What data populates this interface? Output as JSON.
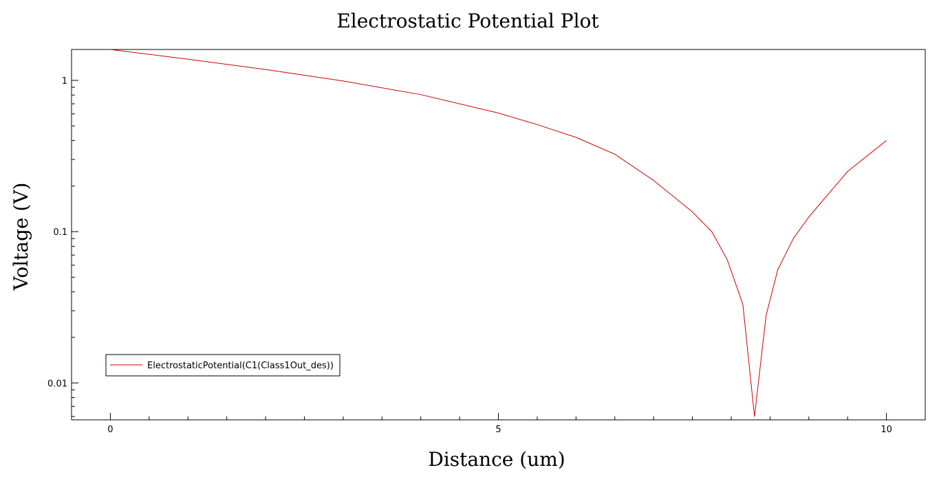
{
  "chart_data": {
    "type": "line",
    "title": "Electrostatic Potential Plot",
    "xlabel": "Distance (um)",
    "ylabel": "Voltage (V)",
    "xscale": "linear",
    "yscale": "log",
    "xlim": [
      -0.5,
      10.5
    ],
    "ylim": [
      0.0057,
      1.6
    ],
    "x_ticks": [
      {
        "value": 0,
        "label": "0"
      },
      {
        "value": 5,
        "label": "5"
      },
      {
        "value": 10,
        "label": "10"
      }
    ],
    "x_minor_step": 0.5,
    "y_ticks": [
      {
        "value": 0.01,
        "label": "0.01"
      },
      {
        "value": 0.1,
        "label": "0.1"
      },
      {
        "value": 1,
        "label": "1"
      }
    ],
    "grid": false,
    "legend": {
      "position": "bottom-left"
    },
    "colors": {
      "series": "#cc0000",
      "axis": "#000000",
      "background": "#ffffff"
    },
    "series": [
      {
        "name": "ElectrostaticPotential(C1(Class1Out_des))",
        "points": [
          [
            0,
            1.6
          ],
          [
            1,
            1.38
          ],
          [
            2,
            1.18
          ],
          [
            3,
            0.99
          ],
          [
            4,
            0.805
          ],
          [
            5,
            0.608
          ],
          [
            5.5,
            0.51
          ],
          [
            6,
            0.42
          ],
          [
            6.5,
            0.325
          ],
          [
            7,
            0.218
          ],
          [
            7.5,
            0.135
          ],
          [
            7.75,
            0.1
          ],
          [
            7.95,
            0.065
          ],
          [
            8.15,
            0.033
          ],
          [
            8.3,
            0.006
          ],
          [
            8.45,
            0.028
          ],
          [
            8.6,
            0.056
          ],
          [
            8.8,
            0.09
          ],
          [
            9,
            0.125
          ],
          [
            9.5,
            0.25
          ],
          [
            10,
            0.4
          ]
        ]
      }
    ]
  }
}
